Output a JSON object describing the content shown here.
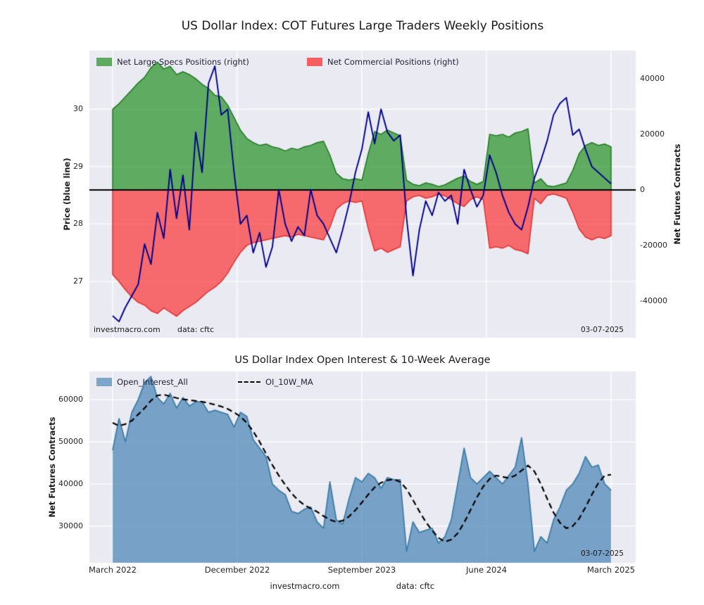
{
  "colors": {
    "plot_bg": "#eaeaf2",
    "grid": "#ffffff",
    "zero_line": "#000000",
    "figure_bg": "#ffffff"
  },
  "footer": {
    "site": "investmacro.com",
    "source": "data: cftc"
  },
  "chart_data": [
    {
      "type": "area",
      "title": "US Dollar Index: COT Futures Large Traders Weekly Positions",
      "left_axis": {
        "label": "Price (blue line)",
        "ticks": [
          27,
          28,
          29,
          30
        ],
        "range": [
          26.02,
          31.02
        ]
      },
      "right_axis": {
        "label": "Net Futures Contracts",
        "ticks": [
          40000,
          20000,
          0,
          -20000,
          -40000
        ],
        "range": [
          -53200,
          50100
        ]
      },
      "legend_position": "upper left",
      "grid": true,
      "annotations": {
        "site": "investmacro.com",
        "source": "data: cftc",
        "date": "03-07-2025"
      },
      "series": [
        {
          "name": "Net Large Specs Positions (right)",
          "kind": "area",
          "axis": "right",
          "fill": "rgba(0,128,0,0.6)",
          "stroke": "#1e7b1e",
          "legend_color": "#5eaa61",
          "values": [
            29000,
            31000,
            33500,
            36000,
            38500,
            40500,
            44000,
            46000,
            43500,
            44500,
            41500,
            42500,
            41500,
            40000,
            38000,
            36500,
            34000,
            33500,
            30500,
            26000,
            21500,
            18500,
            17000,
            16000,
            16500,
            15500,
            15000,
            14000,
            15000,
            14500,
            15500,
            16000,
            17000,
            17500,
            12500,
            6000,
            4000,
            3500,
            4000,
            3500,
            13000,
            21000,
            20000,
            21500,
            20500,
            19500,
            3500,
            2000,
            1500,
            2500,
            2000,
            1200,
            1800,
            3000,
            4200,
            5000,
            3000,
            2000,
            3000,
            20000,
            19500,
            20000,
            19000,
            20500,
            21000,
            22000,
            2500,
            4000,
            1500,
            1200,
            1800,
            2500,
            7000,
            13000,
            16000,
            17000,
            16000,
            16500,
            15500
          ]
        },
        {
          "name": "Net Commercial Positions (right)",
          "kind": "area",
          "axis": "right",
          "fill": "rgba(255,0,0,0.55)",
          "stroke": "#e03030",
          "legend_color": "#f75e61",
          "values": [
            -30500,
            -33000,
            -36000,
            -38500,
            -40500,
            -41500,
            -43500,
            -44500,
            -42500,
            -44000,
            -45500,
            -43500,
            -42000,
            -40500,
            -38500,
            -36500,
            -35000,
            -33000,
            -30000,
            -26000,
            -22500,
            -20000,
            -19000,
            -18500,
            -18000,
            -17500,
            -17000,
            -16500,
            -17000,
            -16000,
            -16500,
            -17000,
            -17500,
            -18000,
            -13500,
            -7000,
            -5000,
            -4000,
            -4500,
            -4000,
            -14000,
            -22000,
            -21000,
            -22500,
            -21500,
            -20500,
            -4000,
            -2500,
            -2000,
            -3000,
            -2500,
            -1500,
            -2200,
            -3500,
            -5000,
            -6000,
            -3500,
            -2500,
            -3500,
            -21000,
            -20500,
            -21000,
            -20000,
            -21500,
            -22000,
            -23000,
            -3000,
            -5000,
            -2000,
            -1500,
            -2200,
            -3000,
            -8000,
            -14000,
            -17000,
            -18000,
            -17000,
            -17500,
            -16500
          ]
        },
        {
          "name": "Price",
          "kind": "line",
          "axis": "left",
          "color": "#00008b",
          "values": [
            26.4,
            26.3,
            26.55,
            26.75,
            26.95,
            27.65,
            27.3,
            28.2,
            27.75,
            28.95,
            28.1,
            28.85,
            27.9,
            29.6,
            28.9,
            30.45,
            30.75,
            29.9,
            30.0,
            28.9,
            28.0,
            28.15,
            27.5,
            27.85,
            27.25,
            27.6,
            28.6,
            28.0,
            27.7,
            27.95,
            27.8,
            28.6,
            28.15,
            28.0,
            27.75,
            27.5,
            27.9,
            28.35,
            28.9,
            29.3,
            29.95,
            29.4,
            30.0,
            29.6,
            29.45,
            29.55,
            28.1,
            27.1,
            27.9,
            28.4,
            28.15,
            28.55,
            28.4,
            28.5,
            28.0,
            28.95,
            28.6,
            28.3,
            28.5,
            29.2,
            28.9,
            28.5,
            28.2,
            28.0,
            27.9,
            28.3,
            28.8,
            29.1,
            29.45,
            29.9,
            30.1,
            30.2,
            29.55,
            29.65,
            29.3,
            29.0,
            28.9,
            28.8,
            28.7
          ]
        }
      ]
    },
    {
      "type": "area",
      "title": "US Dollar Index Open Interest & 10-Week Average",
      "left_axis": {
        "label": "Net Futures Contracts",
        "ticks": [
          30000,
          40000,
          50000,
          60000
        ],
        "range": [
          21300,
          66700
        ]
      },
      "x_ticks": [
        "March 2022",
        "December 2022",
        "September 2023",
        "June 2024",
        "March 2025"
      ],
      "grid": true,
      "annotations": {
        "date": "03-07-2025"
      },
      "series": [
        {
          "name": "Open_Interest_All",
          "kind": "area",
          "fill": "rgba(70,130,180,0.7)",
          "stroke": "#3c7ea8",
          "legend_color": "#7da7ca",
          "values": [
            48000,
            55500,
            50000,
            57000,
            60000,
            64000,
            65500,
            60500,
            59000,
            61500,
            58000,
            60500,
            58500,
            59500,
            59500,
            57000,
            57500,
            57000,
            56500,
            53500,
            57000,
            56000,
            50500,
            48500,
            46500,
            40000,
            38500,
            37500,
            33500,
            33000,
            34000,
            34500,
            31000,
            29500,
            40500,
            31500,
            30500,
            36500,
            41500,
            40500,
            42500,
            41500,
            39000,
            41500,
            41000,
            41000,
            24000,
            31000,
            28500,
            29000,
            29500,
            26000,
            27500,
            31500,
            40000,
            48500,
            41500,
            40000,
            41500,
            43000,
            41500,
            40000,
            42000,
            44000,
            51000,
            40000,
            24000,
            27500,
            26000,
            31500,
            34500,
            38500,
            40000,
            42500,
            46500,
            44000,
            44500,
            40000,
            38500
          ]
        },
        {
          "name": "OI_10W_MA",
          "kind": "line",
          "color": "#000000",
          "dash": [
            8,
            5
          ],
          "values": [
            54500,
            53800,
            54200,
            55000,
            56500,
            58000,
            59800,
            61000,
            61200,
            60800,
            60400,
            60100,
            59900,
            59700,
            59500,
            59200,
            58800,
            58400,
            57800,
            57000,
            56000,
            54500,
            52500,
            50000,
            47200,
            44500,
            42000,
            39800,
            37800,
            36200,
            35000,
            34200,
            33400,
            32400,
            31500,
            31000,
            31300,
            32300,
            33800,
            35600,
            37500,
            39200,
            40300,
            40900,
            41100,
            40500,
            38800,
            36200,
            33500,
            31000,
            29000,
            27200,
            26300,
            26800,
            28300,
            30800,
            33800,
            36800,
            39400,
            41200,
            42000,
            41700,
            41400,
            42000,
            43200,
            44400,
            43000,
            40000,
            36500,
            33200,
            30800,
            29500,
            30000,
            31800,
            34500,
            37500,
            40200,
            42000,
            42200
          ]
        }
      ]
    }
  ]
}
